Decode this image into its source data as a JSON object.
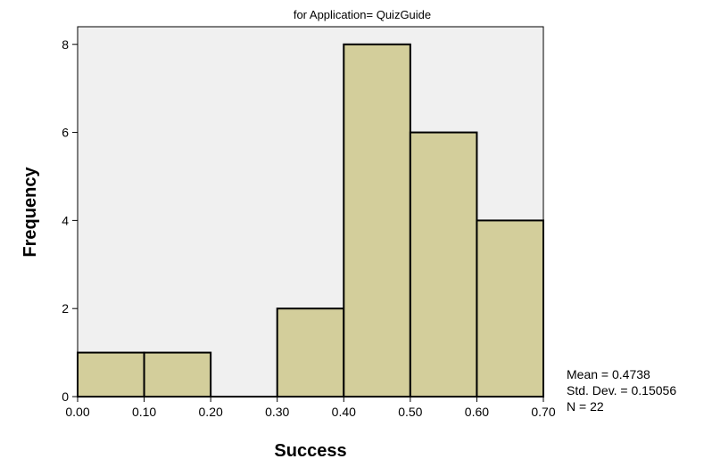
{
  "chart_data": {
    "type": "bar",
    "title": "for Application= QuizGuide",
    "xlabel": "Success",
    "ylabel": "Frequency",
    "bins": [
      {
        "x0": 0.0,
        "x1": 0.1,
        "count": 1
      },
      {
        "x0": 0.1,
        "x1": 0.2,
        "count": 1
      },
      {
        "x0": 0.2,
        "x1": 0.3,
        "count": 0
      },
      {
        "x0": 0.3,
        "x1": 0.4,
        "count": 2
      },
      {
        "x0": 0.4,
        "x1": 0.5,
        "count": 8
      },
      {
        "x0": 0.5,
        "x1": 0.6,
        "count": 6
      },
      {
        "x0": 0.6,
        "x1": 0.7,
        "count": 4
      }
    ],
    "xlim": [
      0.0,
      0.7
    ],
    "ylim": [
      0,
      8.4
    ],
    "x_ticks": [
      "0.00",
      "0.10",
      "0.20",
      "0.30",
      "0.40",
      "0.50",
      "0.60",
      "0.70"
    ],
    "x_tick_values": [
      0.0,
      0.1,
      0.2,
      0.3,
      0.4,
      0.5,
      0.6,
      0.7
    ],
    "y_ticks": [
      "0",
      "2",
      "4",
      "6",
      "8"
    ],
    "y_tick_values": [
      0,
      2,
      4,
      6,
      8
    ],
    "grid": false,
    "colors": {
      "bar_fill": "#d3ce9b",
      "bar_stroke": "#000000",
      "plot_background": "#f0f0f0"
    },
    "stats": {
      "mean": "Mean = 0.4738",
      "std_dev": "Std. Dev. = 0.15056",
      "n": "N = 22"
    }
  }
}
